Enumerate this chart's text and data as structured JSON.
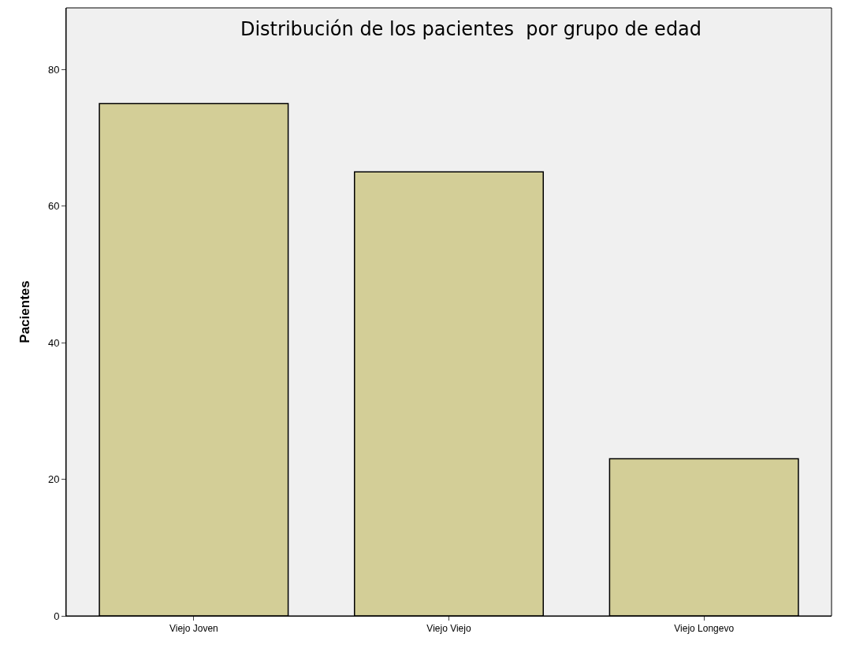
{
  "chart_data": {
    "type": "bar",
    "title": "Distribución de los pacientes  por grupo de edad",
    "ylabel": "Pacientes",
    "categories": [
      "Viejo Joven",
      "Viejo Viejo",
      "Viejo Longevo"
    ],
    "values": [
      75,
      65,
      23
    ],
    "color": "#d3ce97",
    "ylim": [
      0,
      89
    ],
    "yticks": [
      0,
      20,
      40,
      60,
      80
    ]
  }
}
